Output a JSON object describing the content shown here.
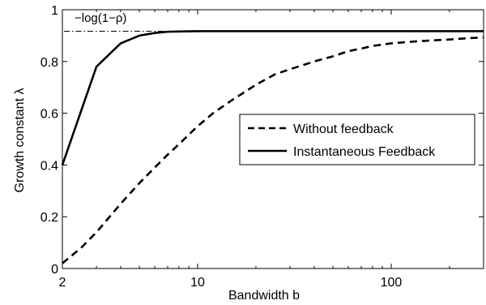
{
  "chart_data": {
    "type": "line",
    "xlabel": "Bandwidth b",
    "ylabel": "Growth constant λ",
    "x_scale": "log",
    "xlim": [
      2,
      300
    ],
    "ylim": [
      0,
      1
    ],
    "x_ticks": [
      {
        "value": 2,
        "label": "2"
      },
      {
        "value": 10,
        "label": "10"
      },
      {
        "value": 100,
        "label": "100"
      }
    ],
    "y_ticks": [
      {
        "value": 0,
        "label": "0"
      },
      {
        "value": 0.2,
        "label": "0.2"
      },
      {
        "value": 0.4,
        "label": "0.4"
      },
      {
        "value": 0.6,
        "label": "0.6"
      },
      {
        "value": 0.8,
        "label": "0.8"
      },
      {
        "value": 1,
        "label": "1"
      }
    ],
    "grid": false,
    "legend_position": "right",
    "series": [
      {
        "name": "Without feedback",
        "style": "dashed",
        "color": "#000000",
        "x": [
          2,
          2.5,
          3,
          4,
          5,
          6,
          7,
          8,
          10,
          12,
          15,
          20,
          25,
          30,
          40,
          50,
          60,
          70,
          80,
          100,
          120,
          150,
          200,
          250,
          300
        ],
        "y": [
          0.02,
          0.08,
          0.14,
          0.25,
          0.33,
          0.39,
          0.44,
          0.48,
          0.55,
          0.6,
          0.65,
          0.71,
          0.75,
          0.77,
          0.8,
          0.82,
          0.84,
          0.85,
          0.86,
          0.87,
          0.875,
          0.88,
          0.885,
          0.89,
          0.893
        ]
      },
      {
        "name": "Instantaneous Feedback",
        "style": "solid",
        "color": "#000000",
        "x": [
          2,
          3,
          4,
          5,
          6,
          7,
          8,
          10,
          15,
          20,
          50,
          100,
          200,
          300
        ],
        "y": [
          0.4,
          0.78,
          0.87,
          0.9,
          0.91,
          0.915,
          0.916,
          0.917,
          0.917,
          0.917,
          0.917,
          0.917,
          0.917,
          0.917
        ]
      }
    ],
    "reference_line": {
      "label": "−log(1−ρ)",
      "y": 0.917,
      "style": "dash-dot"
    }
  }
}
